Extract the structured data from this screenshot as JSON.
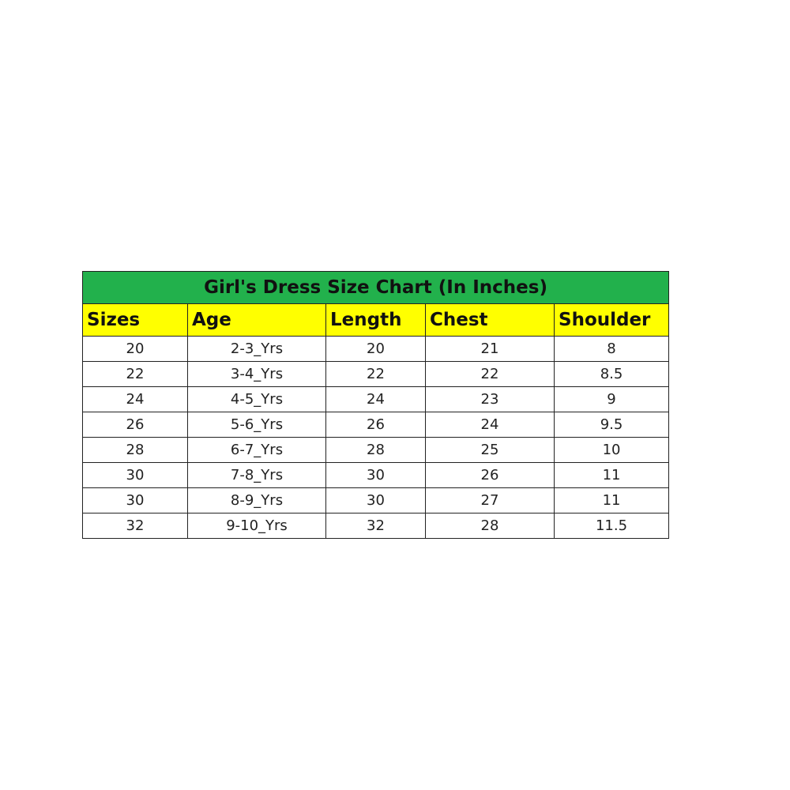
{
  "table": {
    "title": "Girl's Dress Size Chart (In Inches)",
    "colors": {
      "title_bg": "#22b14c",
      "header_bg": "#ffff00"
    },
    "headers": [
      "Sizes",
      "Age",
      "Length",
      "Chest",
      "Shoulder"
    ],
    "rows": [
      [
        "20",
        "2-3_Yrs",
        "20",
        "21",
        "8"
      ],
      [
        "22",
        "3-4_Yrs",
        "22",
        "22",
        "8.5"
      ],
      [
        "24",
        "4-5_Yrs",
        "24",
        "23",
        "9"
      ],
      [
        "26",
        "5-6_Yrs",
        "26",
        "24",
        "9.5"
      ],
      [
        "28",
        "6-7_Yrs",
        "28",
        "25",
        "10"
      ],
      [
        "30",
        "7-8_Yrs",
        "30",
        "26",
        "11"
      ],
      [
        "30",
        "8-9_Yrs",
        "30",
        "27",
        "11"
      ],
      [
        "32",
        "9-10_Yrs",
        "32",
        "28",
        "11.5"
      ]
    ]
  }
}
